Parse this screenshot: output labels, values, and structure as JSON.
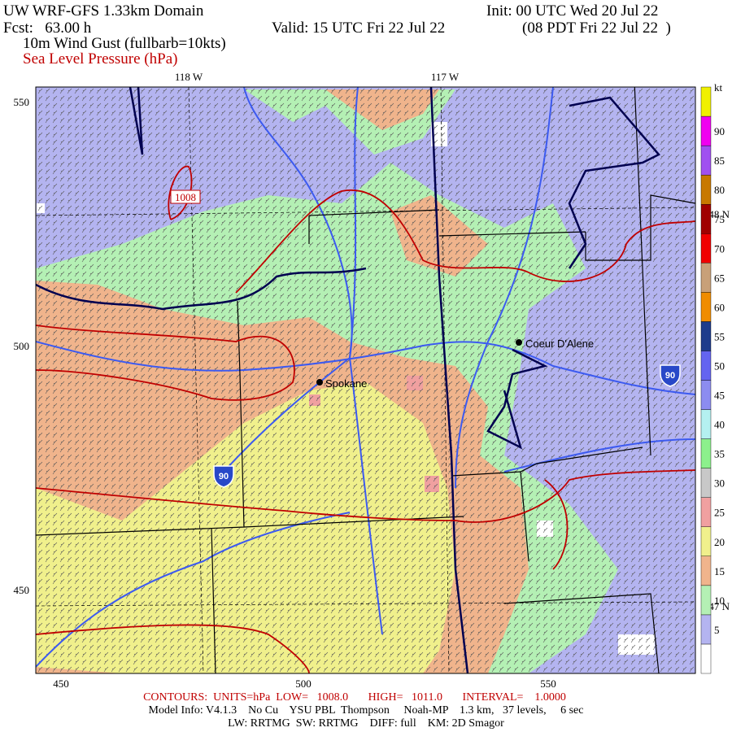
{
  "header": {
    "title": "UW WRF-GFS 1.33km Domain",
    "init": "Init: 00 UTC Wed 20 Jul 22",
    "fcst": "Fcst:   63.00 h",
    "valid": "Valid: 15 UTC Fri 22 Jul 22",
    "local": "(08 PDT Fri 22 Jul 22  )",
    "field1": "10m Wind Gust (fullbarb=10kts)",
    "field2": "Sea Level Pressure (hPa)"
  },
  "map": {
    "lon_labels": [
      "118 W",
      "117 W"
    ],
    "lat_labels": [
      "48 N",
      "47 N"
    ],
    "x_labels": [
      "450",
      "500",
      "550"
    ],
    "y_labels": [
      "550",
      "500",
      "450"
    ],
    "cities": [
      "Spokane",
      "Coeur D'Alene"
    ],
    "contour_label": "1008",
    "highway": [
      "90",
      "90"
    ]
  },
  "colorbar": {
    "unit": "kt",
    "labels": [
      "5",
      "10",
      "15",
      "20",
      "25",
      "30",
      "35",
      "40",
      "45",
      "50",
      "55",
      "60",
      "65",
      "70",
      "75",
      "80",
      "85",
      "90"
    ],
    "colors": [
      "#ffffff",
      "#b4b4f0",
      "#b4f0b4",
      "#f0b48c",
      "#f0f08c",
      "#f0a0a0",
      "#c8c8c8",
      "#8cf08c",
      "#b4f0f0",
      "#8c8cf0",
      "#6464f0",
      "#1e3c8c",
      "#f08c00",
      "#c8a078",
      "#f00000",
      "#a00000",
      "#c87800",
      "#a050f0",
      "#f000f0",
      "#f0f000"
    ]
  },
  "footer": {
    "contours": "CONTOURS:  UNITS=hPa  LOW=   1008.0       HIGH=   1011.0       INTERVAL=    1.0000",
    "model": "Model Info: V4.1.3    No Cu    YSU PBL  Thompson     Noah-MP    1.3 km,   37 levels,     6 sec",
    "physics": "LW: RRTMG  SW: RRTMG    DIFF: full    KM: 2D Smagor"
  }
}
